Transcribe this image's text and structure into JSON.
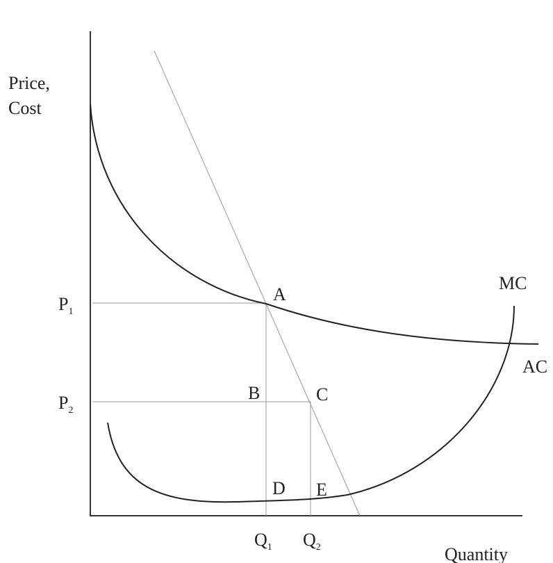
{
  "axis_labels": {
    "y": [
      "Price,",
      "Cost"
    ],
    "x": "Quantity"
  },
  "prices": [
    {
      "base": "P",
      "sub": "1"
    },
    {
      "base": "P",
      "sub": "2"
    }
  ],
  "quantities": [
    {
      "base": "Q",
      "sub": "1"
    },
    {
      "base": "Q",
      "sub": "2"
    }
  ],
  "points": [
    "A",
    "B",
    "C",
    "D",
    "E"
  ],
  "curves": {
    "mc": "MC",
    "ac": "AC"
  }
}
